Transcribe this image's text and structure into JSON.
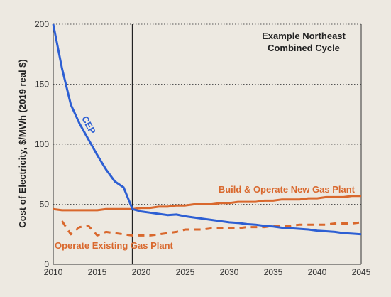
{
  "chart_data": {
    "type": "line",
    "title": "",
    "annotation": [
      "Example Northeast",
      "Combined Cycle"
    ],
    "xlabel": "",
    "ylabel": "Cost of Electricity, $/MWh (2019 real $)",
    "xlim": [
      2010,
      2045
    ],
    "ylim": [
      0,
      200
    ],
    "xticks": [
      2010,
      2015,
      2020,
      2025,
      2030,
      2035,
      2040,
      2045
    ],
    "yticks": [
      0,
      50,
      100,
      150,
      200
    ],
    "grid": "horizontal dotted",
    "vline_x": 2019,
    "colors": {
      "cep": "#2d5fd3",
      "gas": "#d9682d",
      "background": "#ede9e1"
    },
    "series": [
      {
        "name": "CEP",
        "style": "solid",
        "x": [
          2010,
          2011,
          2012,
          2013,
          2014,
          2015,
          2016,
          2017,
          2018,
          2019,
          2020,
          2021,
          2022,
          2023,
          2024,
          2025,
          2026,
          2027,
          2028,
          2029,
          2030,
          2031,
          2032,
          2033,
          2034,
          2035,
          2036,
          2037,
          2038,
          2039,
          2040,
          2041,
          2042,
          2043,
          2044,
          2045
        ],
        "values": [
          200,
          163,
          133,
          117,
          104,
          91,
          79,
          69,
          64,
          46,
          44,
          43,
          42,
          41,
          41.5,
          40,
          39,
          38,
          37,
          36,
          35,
          34.5,
          33.5,
          33,
          32,
          31.5,
          30.5,
          30,
          29.5,
          29,
          28,
          27.5,
          27,
          26,
          25.5,
          25
        ]
      },
      {
        "name": "Build & Operate New Gas Plant",
        "style": "solid",
        "x": [
          2010,
          2011,
          2012,
          2013,
          2014,
          2015,
          2016,
          2017,
          2018,
          2019,
          2020,
          2021,
          2022,
          2023,
          2024,
          2025,
          2026,
          2027,
          2028,
          2029,
          2030,
          2031,
          2032,
          2033,
          2034,
          2035,
          2036,
          2037,
          2038,
          2039,
          2040,
          2041,
          2042,
          2043,
          2044,
          2045
        ],
        "values": [
          46,
          45,
          45,
          45,
          45,
          45,
          46,
          46,
          46,
          46,
          47,
          47,
          48,
          48,
          49,
          49,
          50,
          50,
          50,
          51,
          51,
          52,
          52,
          52,
          53,
          53,
          54,
          54,
          54,
          55,
          55,
          56,
          56,
          56,
          57,
          57
        ]
      },
      {
        "name": "Operate Existing Gas Plant",
        "style": "dashed",
        "x": [
          2011,
          2012,
          2013,
          2014,
          2015,
          2016,
          2017,
          2018,
          2019,
          2020,
          2021,
          2022,
          2023,
          2024,
          2025,
          2026,
          2027,
          2028,
          2029,
          2030,
          2031,
          2032,
          2033,
          2034,
          2035,
          2036,
          2037,
          2038,
          2039,
          2040,
          2041,
          2042,
          2043,
          2044,
          2045
        ],
        "values": [
          36,
          25,
          31,
          32,
          24,
          27,
          26,
          25,
          24,
          24,
          24,
          25,
          26,
          27,
          29,
          29,
          29,
          30,
          30,
          30,
          30,
          31,
          31,
          31,
          32,
          32,
          32,
          33,
          33,
          33,
          33,
          34,
          34,
          34,
          35
        ]
      }
    ]
  }
}
